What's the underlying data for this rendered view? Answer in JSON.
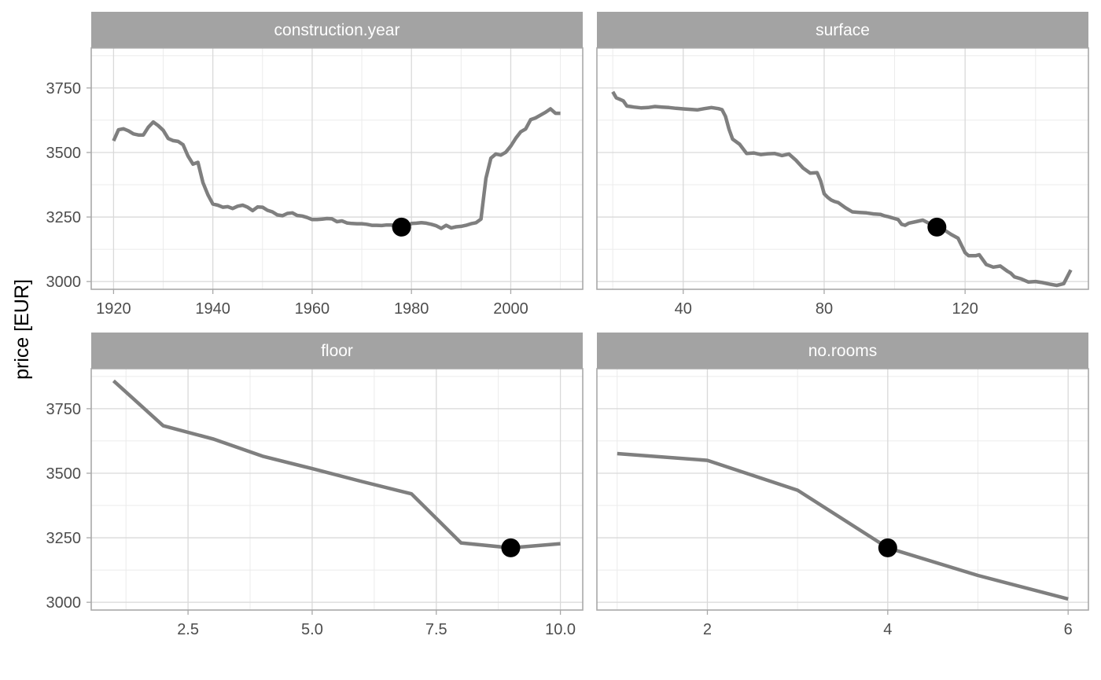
{
  "chart_data": {
    "type": "line",
    "ylabel": "price [EUR]",
    "ylim": [
      2970,
      3905
    ],
    "y_ticks": [
      3000,
      3250,
      3500,
      3750
    ],
    "line_color": "#7f7f7f",
    "point_color": "#000000",
    "strip_color": "#a3a3a3",
    "grid": true,
    "panels": [
      {
        "name": "construction.year",
        "xlim": [
          1915.5,
          2014.5
        ],
        "x_ticks": [
          1920,
          1940,
          1960,
          1980,
          2000
        ],
        "x_tick_labels": [
          "1920",
          "1940",
          "1960",
          "1980",
          "2000"
        ],
        "x": [
          1920,
          1921,
          1922,
          1923,
          1924,
          1925,
          1926,
          1927,
          1928,
          1929,
          1930,
          1931,
          1932,
          1933,
          1934,
          1935,
          1936,
          1937,
          1938,
          1939,
          1940,
          1941,
          1942,
          1943,
          1944,
          1945,
          1946,
          1947,
          1948,
          1949,
          1950,
          1951,
          1952,
          1953,
          1954,
          1955,
          1956,
          1957,
          1958,
          1959,
          1960,
          1961,
          1962,
          1963,
          1964,
          1965,
          1966,
          1967,
          1968,
          1969,
          1970,
          1971,
          1972,
          1973,
          1974,
          1975,
          1976,
          1977,
          1978,
          1979,
          1980,
          1981,
          1982,
          1983,
          1984,
          1985,
          1986,
          1987,
          1988,
          1989,
          1990,
          1991,
          1992,
          1993,
          1994,
          1995,
          1996,
          1997,
          1998,
          1999,
          2000,
          2001,
          2002,
          2003,
          2004,
          2005,
          2006,
          2007,
          2008,
          2009,
          2010
        ],
        "y": [
          3545,
          3588,
          3592,
          3584,
          3572,
          3568,
          3568,
          3598,
          3618,
          3604,
          3586,
          3554,
          3546,
          3543,
          3530,
          3486,
          3455,
          3462,
          3384,
          3336,
          3300,
          3296,
          3288,
          3290,
          3283,
          3292,
          3296,
          3288,
          3275,
          3289,
          3288,
          3276,
          3270,
          3258,
          3255,
          3264,
          3266,
          3256,
          3254,
          3248,
          3240,
          3240,
          3242,
          3244,
          3243,
          3232,
          3235,
          3227,
          3225,
          3224,
          3224,
          3222,
          3218,
          3218,
          3217,
          3219,
          3219,
          3212,
          3212,
          3214,
          3225,
          3226,
          3228,
          3226,
          3222,
          3216,
          3206,
          3218,
          3208,
          3212,
          3214,
          3218,
          3224,
          3228,
          3242,
          3400,
          3478,
          3494,
          3490,
          3501,
          3525,
          3555,
          3580,
          3591,
          3627,
          3634,
          3645,
          3656,
          3669,
          3652,
          3652
        ],
        "point": {
          "x": 1978,
          "y": 3211
        }
      },
      {
        "name": "surface",
        "xlim": [
          15.5,
          155
        ],
        "x_ticks": [
          40,
          80,
          120
        ],
        "x_tick_labels": [
          "40",
          "80",
          "120"
        ],
        "x": [
          20,
          21,
          22,
          23,
          24,
          25,
          26,
          28,
          30,
          32,
          34,
          36,
          38,
          40,
          42,
          44,
          46,
          48,
          50,
          51,
          52,
          53,
          54,
          56,
          58,
          60,
          62,
          64,
          66,
          68,
          70,
          72,
          74,
          76,
          78,
          79,
          80,
          81,
          82,
          83,
          84,
          86,
          88,
          90,
          92,
          94,
          96,
          97,
          98,
          99,
          100,
          101,
          102,
          103,
          104,
          106,
          108,
          110,
          112,
          114,
          116,
          118,
          120,
          121,
          122,
          123,
          124,
          126,
          128,
          130,
          132,
          133,
          134,
          136,
          138,
          140,
          142,
          144,
          146,
          148,
          150
        ],
        "y": [
          3735,
          3712,
          3706,
          3700,
          3680,
          3678,
          3676,
          3673,
          3674,
          3678,
          3676,
          3674,
          3671,
          3669,
          3667,
          3665,
          3670,
          3674,
          3670,
          3666,
          3640,
          3590,
          3552,
          3532,
          3496,
          3498,
          3492,
          3495,
          3496,
          3488,
          3494,
          3470,
          3440,
          3420,
          3422,
          3390,
          3340,
          3326,
          3316,
          3310,
          3306,
          3286,
          3270,
          3268,
          3266,
          3262,
          3260,
          3255,
          3252,
          3248,
          3244,
          3240,
          3222,
          3218,
          3226,
          3232,
          3238,
          3224,
          3211,
          3201,
          3183,
          3168,
          3112,
          3100,
          3100,
          3100,
          3104,
          3066,
          3056,
          3060,
          3040,
          3032,
          3018,
          3010,
          2998,
          3000,
          2996,
          2990,
          2985,
          2992,
          3045
        ],
        "point": {
          "x": 112,
          "y": 3211
        }
      },
      {
        "name": "floor",
        "xlim": [
          0.55,
          10.45
        ],
        "x_ticks": [
          2.5,
          5.0,
          7.5,
          10.0
        ],
        "x_tick_labels": [
          "2.5",
          "5.0",
          "7.5",
          "10.0"
        ],
        "x": [
          1,
          2,
          3,
          4,
          5,
          6,
          7,
          8,
          9,
          10
        ],
        "y": [
          3858,
          3684,
          3633,
          3566,
          3518,
          3468,
          3420,
          3230,
          3211,
          3227
        ],
        "point": {
          "x": 9,
          "y": 3211
        }
      },
      {
        "name": "no.rooms",
        "xlim": [
          0.775,
          6.225
        ],
        "x_ticks": [
          2,
          4,
          6
        ],
        "x_tick_labels": [
          "2",
          "4",
          "6"
        ],
        "x": [
          1,
          2,
          3,
          4,
          5,
          6
        ],
        "y": [
          3576,
          3550,
          3434,
          3211,
          3104,
          3013
        ],
        "point": {
          "x": 4,
          "y": 3211
        }
      }
    ]
  }
}
